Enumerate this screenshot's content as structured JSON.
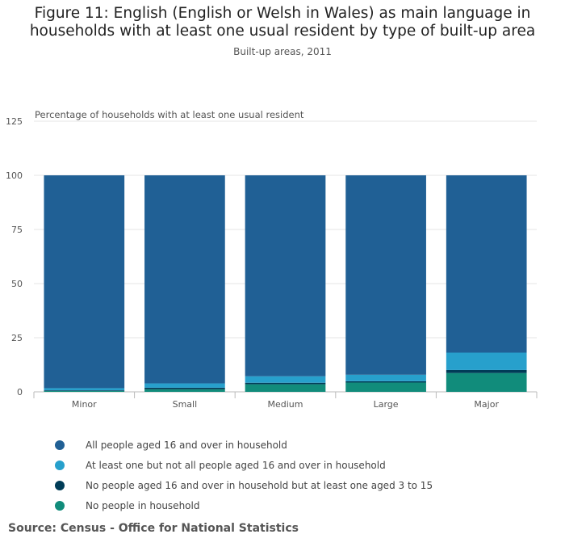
{
  "header": {
    "title_line1": "Figure 11: English (English or Welsh in Wales) as main language in",
    "title_line2": "households with at least one usual resident by type of built-up area",
    "subtitle": "Built-up areas, 2011"
  },
  "chart_data": {
    "type": "bar",
    "stacked": true,
    "title": "Figure 11: English (English or Welsh in Wales) as main language in households with at least one usual resident by type of built-up area",
    "subtitle": "Built-up areas, 2011",
    "ylabel": "Percentage of households with at least one usual resident",
    "xlabel": "",
    "ylim": [
      0,
      125
    ],
    "yticks": [
      0,
      25,
      50,
      75,
      100,
      125
    ],
    "categories": [
      "Minor",
      "Small",
      "Medium",
      "Large",
      "Major"
    ],
    "series": [
      {
        "name": "No people in household",
        "color": "#118c7b",
        "values": [
          0.4,
          1.2,
          3.5,
          4.3,
          8.7
        ]
      },
      {
        "name": "No people aged 16 and over in household but at least one aged 3 to 15",
        "color": "#003c57",
        "values": [
          0.3,
          0.7,
          0.7,
          0.6,
          1.4
        ]
      },
      {
        "name": "At least one but not all people aged 16 and over in household",
        "color": "#27a0cc",
        "values": [
          1.0,
          2.0,
          3.0,
          3.0,
          8.0
        ]
      },
      {
        "name": "All people aged 16 and over in household",
        "color": "#206095",
        "values": [
          98.3,
          96.1,
          92.8,
          92.1,
          81.9
        ]
      }
    ],
    "gridlines": true,
    "legend_position": "bottom"
  },
  "legend": {
    "items": [
      {
        "label": "All people aged 16 and over in household",
        "color": "#206095"
      },
      {
        "label": "At least one but not all people aged 16 and over in household",
        "color": "#27a0cc"
      },
      {
        "label": "No people aged 16 and over in household but at least one aged 3 to 15",
        "color": "#003c57"
      },
      {
        "label": "No people in household",
        "color": "#118c7b"
      }
    ]
  },
  "footer": {
    "source": "Source: Census - Office for National Statistics"
  }
}
